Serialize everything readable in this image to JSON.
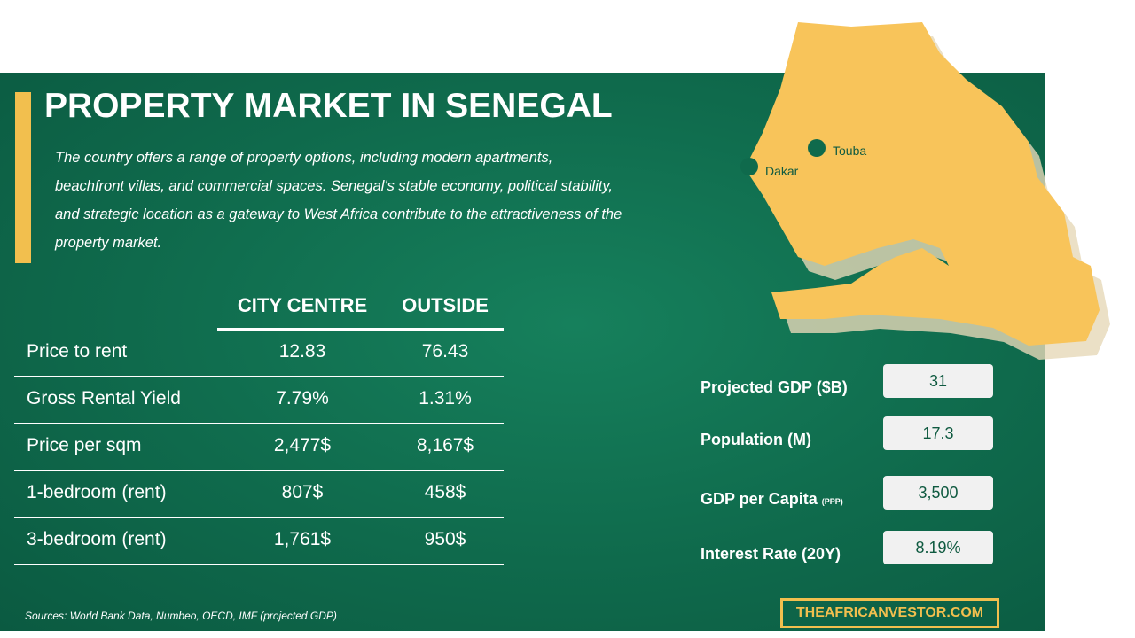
{
  "header": {
    "title": "PROPERTY MARKET IN SENEGAL",
    "description": "The country offers a range of property options, including modern apartments, beachfront villas, and commercial spaces. Senegal's stable economy, political stability, and strategic location as a gateway to West Africa contribute to the attractiveness of the property market."
  },
  "table": {
    "headers": [
      "CITY CENTRE",
      "OUTSIDE"
    ],
    "rows": [
      [
        "Price to rent",
        "12.83",
        "76.43"
      ],
      [
        "Gross Rental Yield",
        "7.79%",
        "1.31%"
      ],
      [
        "Price per sqm",
        "2,477$",
        "8,167$"
      ],
      [
        "1-bedroom (rent)",
        "807$",
        "458$"
      ],
      [
        "3-bedroom (rent)",
        "1,761$",
        "950$"
      ]
    ]
  },
  "map": {
    "cities": [
      "Touba",
      "Dakar"
    ]
  },
  "stats": [
    {
      "label": "Projected GDP ($B)",
      "value": "31"
    },
    {
      "label": "Population (M)",
      "value": "17.3"
    },
    {
      "label": "GDP per Capita",
      "note": "(PPP)",
      "value": "3,500"
    },
    {
      "label": "Interest Rate (20Y)",
      "value": "8.19%"
    }
  ],
  "footer": {
    "sources": "Sources:  World Bank Data, Numbeo, OECD, IMF (projected GDP)",
    "brand": "THEAFRICANVESTOR.COM"
  }
}
